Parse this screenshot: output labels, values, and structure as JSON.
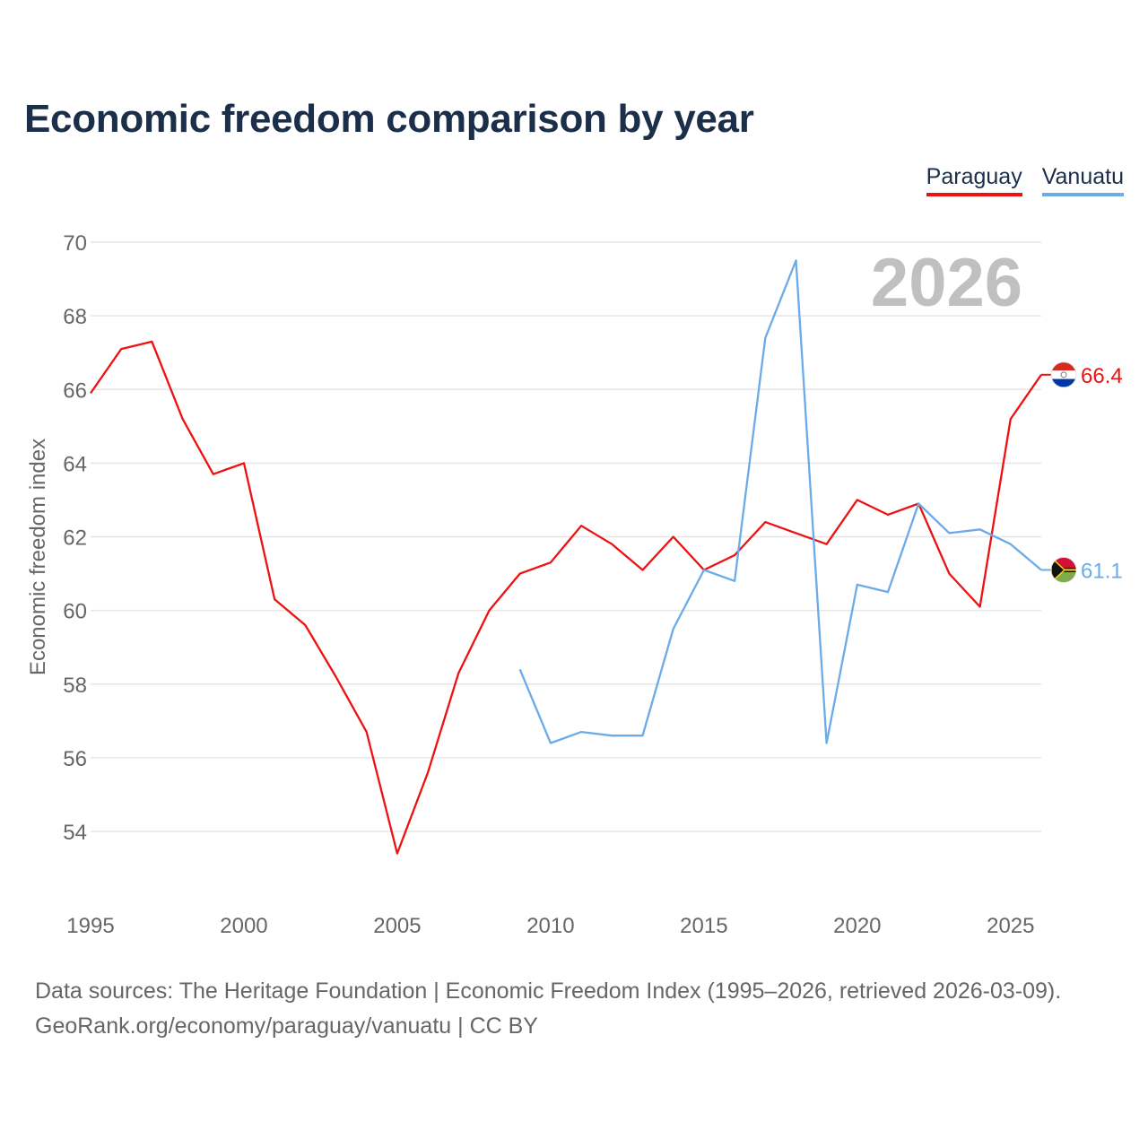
{
  "title": "Economic freedom comparison by year",
  "legend": [
    {
      "label": "Paraguay",
      "color": "#ee1111"
    },
    {
      "label": "Vanuatu",
      "color": "#6aabe8"
    }
  ],
  "footer": {
    "line1": "Data sources: The Heritage Foundation | Economic Freedom Index (1995–2026, retrieved 2026-03-09).",
    "line2": "GeoRank.org/economy/paraguay/vanuatu | CC BY"
  },
  "chart_data": {
    "type": "line",
    "year_label": "2026",
    "ylabel": "Economic freedom index",
    "xlim": [
      1995,
      2026
    ],
    "ylim": [
      52,
      70
    ],
    "y_ticks": [
      54,
      56,
      58,
      60,
      62,
      64,
      66,
      68,
      70
    ],
    "x_ticks": [
      1995,
      2000,
      2005,
      2010,
      2015,
      2020,
      2025
    ],
    "series": [
      {
        "name": "Paraguay",
        "color": "#ee1111",
        "end_label": "66.4",
        "flag": "paraguay-flag-icon",
        "x": [
          1995,
          1996,
          1997,
          1998,
          1999,
          2000,
          2001,
          2002,
          2003,
          2004,
          2005,
          2006,
          2007,
          2008,
          2009,
          2010,
          2011,
          2012,
          2013,
          2014,
          2015,
          2016,
          2017,
          2018,
          2019,
          2020,
          2021,
          2022,
          2023,
          2024,
          2025,
          2026
        ],
        "values": [
          65.9,
          67.1,
          67.3,
          65.2,
          63.7,
          64.0,
          60.3,
          59.6,
          58.2,
          56.7,
          53.4,
          55.6,
          58.3,
          60.0,
          61.0,
          61.3,
          62.3,
          61.8,
          61.1,
          62.0,
          61.1,
          61.5,
          62.4,
          62.1,
          61.8,
          63.0,
          62.6,
          62.9,
          61.0,
          60.1,
          65.2,
          66.4
        ]
      },
      {
        "name": "Vanuatu",
        "color": "#6aabe8",
        "end_label": "61.1",
        "flag": "vanuatu-flag-icon",
        "x": [
          2009,
          2010,
          2011,
          2012,
          2013,
          2014,
          2015,
          2016,
          2017,
          2018,
          2019,
          2020,
          2021,
          2022,
          2023,
          2024,
          2025,
          2026
        ],
        "values": [
          58.4,
          56.4,
          56.7,
          56.6,
          56.6,
          59.5,
          61.1,
          60.8,
          67.4,
          69.5,
          56.4,
          60.7,
          60.5,
          62.9,
          62.1,
          62.2,
          61.8,
          61.1
        ]
      }
    ]
  }
}
